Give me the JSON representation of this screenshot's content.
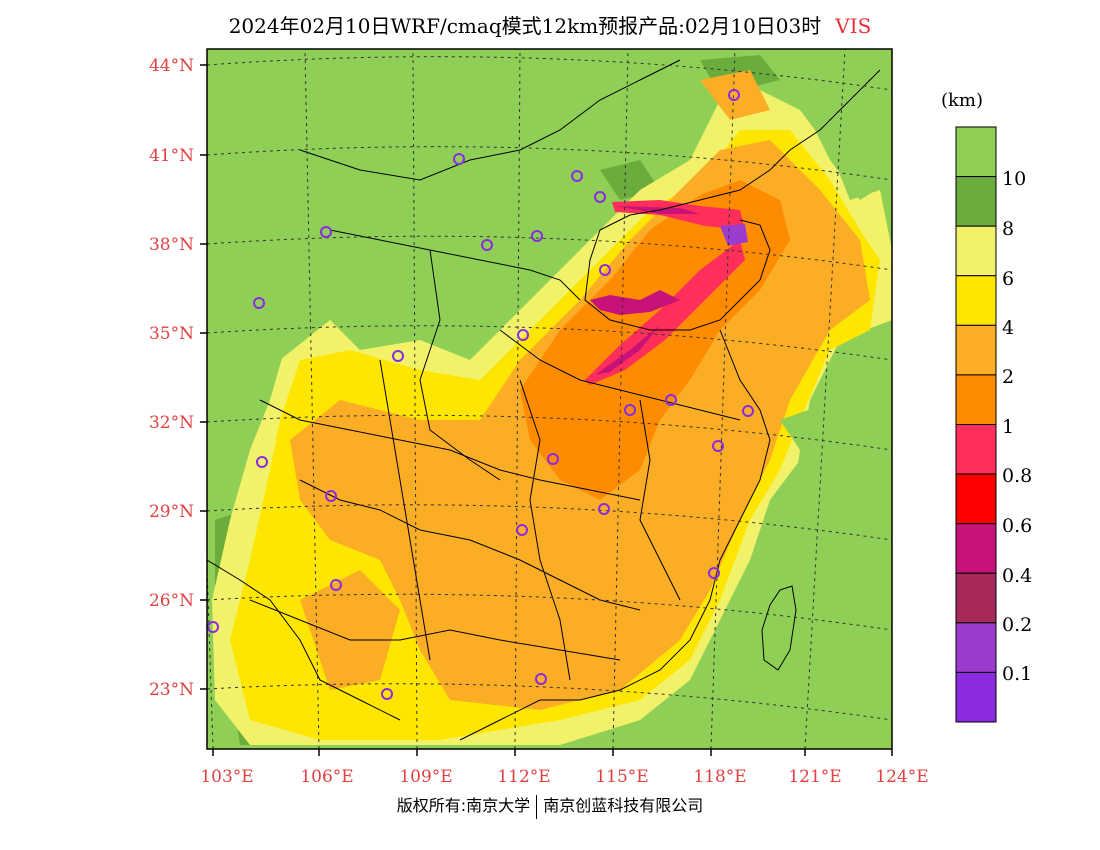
{
  "title": {
    "main": "2024年02月10日WRF/cmaq模式12km预报产品:02月10日03时",
    "variable": "VIS"
  },
  "colorbar": {
    "unit": "(km)",
    "levels": [
      "10",
      "8",
      "6",
      "4",
      "2",
      "1",
      "0.8",
      "0.6",
      "0.4",
      "0.2",
      "0.1"
    ],
    "colors": [
      "#8fcf55",
      "#6aad3c",
      "#f2f26a",
      "#ffe600",
      "#fbad26",
      "#ff8c00",
      "#ff2e5a",
      "#ff0000",
      "#c7127a",
      "#a82a5a",
      "#9b3ccf",
      "#8a2be2"
    ]
  },
  "axes": {
    "lat_labels": [
      "44°N",
      "41°N",
      "38°N",
      "35°N",
      "32°N",
      "29°N",
      "26°N",
      "23°N"
    ],
    "lon_labels": [
      "103°E",
      "106°E",
      "109°E",
      "112°E",
      "115°E",
      "118°E",
      "121°E",
      "124°E"
    ]
  },
  "footer": {
    "left": "版权所有:南京大学",
    "right": "南京创蓝科技有限公司"
  }
}
